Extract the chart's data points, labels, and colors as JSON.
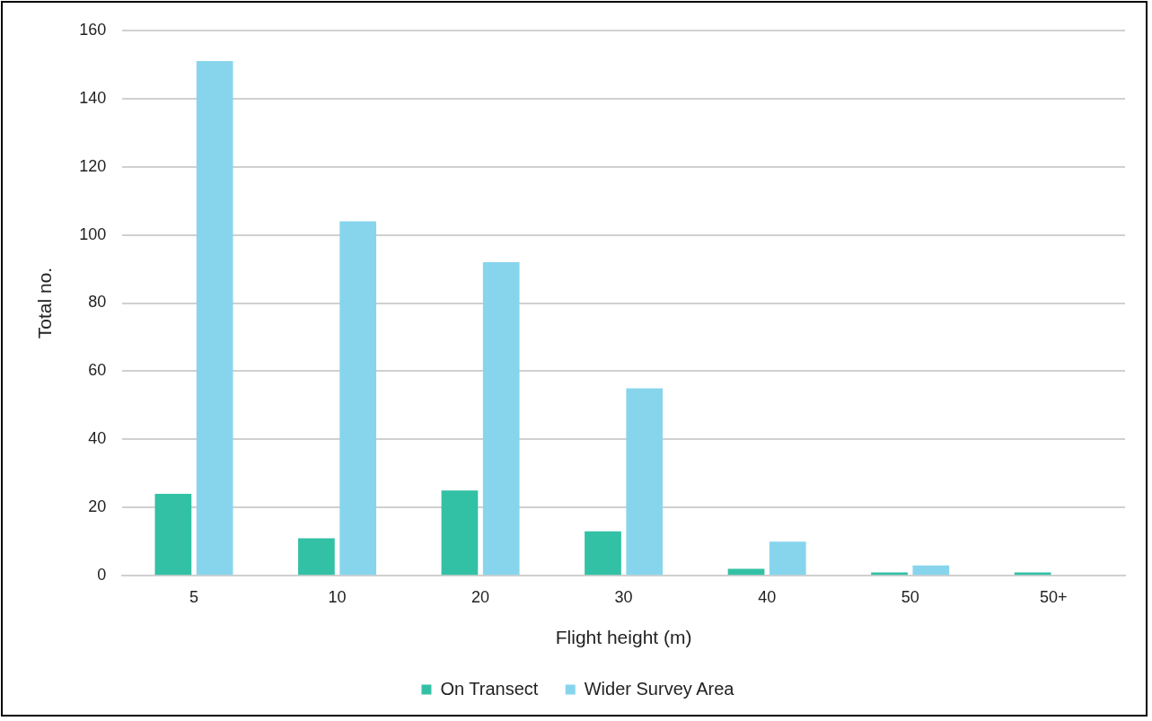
{
  "chart_data": {
    "type": "bar",
    "xlabel": "Flight height (m)",
    "ylabel": "Total no.",
    "categories": [
      "5",
      "10",
      "20",
      "30",
      "40",
      "50",
      "50+"
    ],
    "series": [
      {
        "name": "On Transect",
        "color": "#33c1a5",
        "values": [
          24,
          11,
          25,
          13,
          2,
          1,
          1
        ]
      },
      {
        "name": "Wider Survey Area",
        "color": "#87d5ed",
        "values": [
          151,
          104,
          92,
          55,
          10,
          3,
          0
        ]
      }
    ],
    "ylim": [
      0,
      160
    ],
    "yticks": [
      0,
      20,
      40,
      60,
      80,
      100,
      120,
      140,
      160
    ],
    "grid": "y",
    "legend": "bottom"
  }
}
